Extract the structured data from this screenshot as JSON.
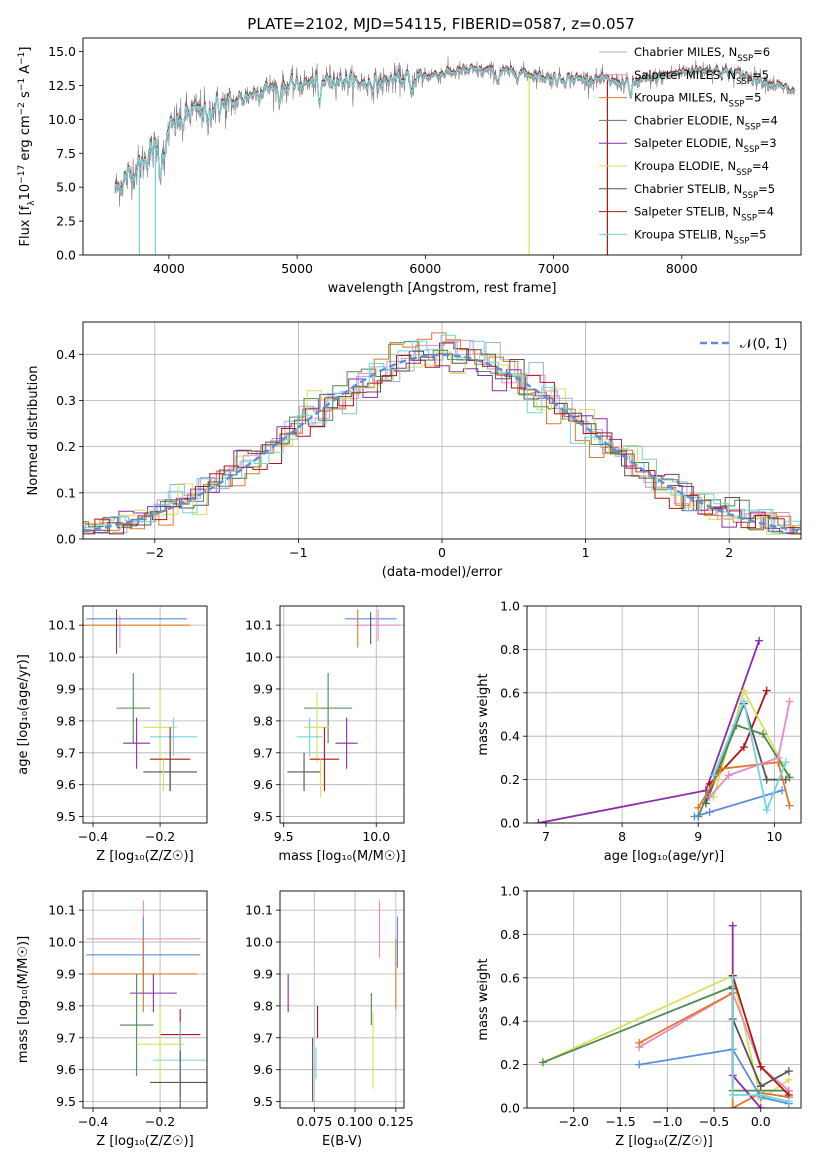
{
  "figure": {
    "title": "PLATE=2102, MJD=54115, FIBERID=0587, z=0.057"
  },
  "colors": {
    "chabrier_miles": "#9ab5d3",
    "salpeter_miles": "#e889c8",
    "kroupa_miles": "#e0792a",
    "chabrier_elodie": "#4f8a4f",
    "salpeter_elodie": "#8e2aa8",
    "kroupa_elodie": "#d6e05a",
    "chabrier_stelib": "#555555",
    "salpeter_stelib": "#b01515",
    "kroupa_stelib": "#6fd6e0",
    "data_gray": "#7a7a7a",
    "normal_curve": "#5b8fd9",
    "blue_model": "#5b8fd9",
    "grid": "#b0b0b0"
  },
  "chart_data": [
    {
      "panel": "spectrum",
      "type": "line",
      "title": "PLATE=2102, MJD=54115, FIBERID=0587, z=0.057",
      "xlabel": "wavelength [Angstrom, rest frame]",
      "ylabel_parts": [
        "Flux [f",
        "λ",
        "10",
        "−17",
        " erg cm",
        "−2",
        " s",
        "−1",
        " A",
        "−1",
        "]"
      ],
      "xlim": [
        3330,
        8930
      ],
      "ylim": [
        0,
        16
      ],
      "xticks": [
        4000,
        5000,
        6000,
        7000,
        8000
      ],
      "yticks": [
        0.0,
        2.5,
        5.0,
        7.5,
        10.0,
        12.5,
        15.0
      ],
      "continuum": {
        "x": [
          3580,
          3700,
          3800,
          3900,
          4000,
          4100,
          4200,
          4300,
          4400,
          4500,
          4600,
          4700,
          4800,
          4900,
          5000,
          5100,
          5200,
          5300,
          5400,
          5600,
          5800,
          6000,
          6200,
          6400,
          6600,
          6800,
          7000,
          7200,
          7400,
          7600,
          7800,
          8000,
          8200,
          8400,
          8600,
          8880
        ],
        "y": [
          4.8,
          6.0,
          6.9,
          8.0,
          9.2,
          10.2,
          10.6,
          10.8,
          11.0,
          11.2,
          11.7,
          12.1,
          12.4,
          12.4,
          12.6,
          12.7,
          12.9,
          13.0,
          12.8,
          12.6,
          13.0,
          13.2,
          13.5,
          13.6,
          13.5,
          13.4,
          13.0,
          13.0,
          12.9,
          12.6,
          13.1,
          13.5,
          13.7,
          13.4,
          13.0,
          12.0
        ]
      },
      "series": [
        {
          "name": "Chabrier MILES, N",
          "n_ssp": "6",
          "color_key": "chabrier_miles"
        },
        {
          "name": "Salpeter MILES, N",
          "n_ssp": "5",
          "color_key": "salpeter_miles"
        },
        {
          "name": "Kroupa MILES, N",
          "n_ssp": "5",
          "color_key": "kroupa_miles"
        },
        {
          "name": "Chabrier ELODIE, N",
          "n_ssp": "4",
          "color_key": "chabrier_elodie"
        },
        {
          "name": "Salpeter ELODIE, N",
          "n_ssp": "3",
          "color_key": "salpeter_elodie"
        },
        {
          "name": "Kroupa ELODIE, N",
          "n_ssp": "4",
          "color_key": "kroupa_elodie"
        },
        {
          "name": "Chabrier STELIB, N",
          "n_ssp": "5",
          "color_key": "chabrier_stelib"
        },
        {
          "name": "Salpeter STELIB, N",
          "n_ssp": "4",
          "color_key": "salpeter_stelib"
        },
        {
          "name": "Kroupa STELIB, N",
          "n_ssp": "5",
          "color_key": "kroupa_stelib"
        }
      ],
      "legend_subscript": "SSP",
      "legend_location": "right"
    },
    {
      "panel": "residuals",
      "type": "area",
      "xlabel": "(data-model)/error",
      "ylabel": "Normed distribution",
      "xlim": [
        -2.5,
        2.5
      ],
      "ylim": [
        0,
        0.47
      ],
      "xticks": [
        -2,
        -1,
        0,
        1,
        2
      ],
      "xtick_labels": [
        "−2",
        "−1",
        "0",
        "1",
        "2"
      ],
      "yticks": [
        0.0,
        0.1,
        0.2,
        0.3,
        0.4
      ],
      "yticks_labels": [
        "0.0",
        "0.1",
        "0.2",
        "0.3",
        "0.4"
      ],
      "grid": true,
      "bin_width": 0.1,
      "reference_curve": {
        "name": "𝒩(0, 1)",
        "mean": 0,
        "sigma": 1
      },
      "legend_location": "top-right"
    },
    {
      "panel": "age-vs-Z",
      "type": "scatter",
      "xlabel": "Z [log₁₀(Z/Z☉)]",
      "ylabel": "age  [log₁₀(age/yr)]",
      "xlim": [
        -0.43,
        -0.06
      ],
      "ylim": [
        9.48,
        10.16
      ],
      "xticks": [
        -0.4,
        -0.2
      ],
      "xtick_labels": [
        "−0.4",
        "−0.2"
      ],
      "yticks": [
        9.5,
        9.6,
        9.7,
        9.8,
        9.9,
        10.0,
        10.1
      ],
      "grid": true,
      "points": [
        {
          "color_key": "blue_model",
          "x": -0.27,
          "xerr": 0.15,
          "y": 10.12,
          "yerr": 0.0
        },
        {
          "color_key": "kroupa_miles",
          "x": -0.27,
          "xerr": 0.16,
          "y": 10.1,
          "yerr": 0.0
        },
        {
          "color_key": "salpeter_miles",
          "x": -0.32,
          "xerr": 0.0,
          "y": 10.08,
          "yerr": 0.05
        },
        {
          "color_key": "chabrier_stelib",
          "x": -0.33,
          "xerr": 0.0,
          "y": 10.08,
          "yerr": 0.07
        },
        {
          "color_key": "chabrier_elodie",
          "x": -0.28,
          "xerr": 0.05,
          "y": 9.84,
          "yerr": 0.11
        },
        {
          "color_key": "kroupa_elodie",
          "x": -0.2,
          "xerr": 0.05,
          "y": 9.78,
          "yerr": 0.11
        },
        {
          "color_key": "kroupa_stelib",
          "x": -0.16,
          "xerr": 0.07,
          "y": 9.75,
          "yerr": 0.06
        },
        {
          "color_key": "salpeter_elodie",
          "x": -0.27,
          "xerr": 0.04,
          "y": 9.73,
          "yerr": 0.08
        },
        {
          "color_key": "salpeter_stelib",
          "x": -0.17,
          "xerr": 0.06,
          "y": 9.68,
          "yerr": 0.1
        },
        {
          "color_key": "chabrier_stelib",
          "x": -0.17,
          "xerr": 0.08,
          "y": 9.64,
          "yerr": 0.06
        },
        {
          "color_key": "kroupa_elodie",
          "x": -0.19,
          "xerr": 0.0,
          "y": 9.63,
          "yerr": 0.05
        }
      ]
    },
    {
      "panel": "age-vs-mass",
      "type": "scatter",
      "xlabel": "mass [log₁₀(M/M☉)]",
      "xlim": [
        9.48,
        10.15
      ],
      "ylim": [
        9.48,
        10.16
      ],
      "xticks": [
        9.5,
        10.0
      ],
      "xtick_labels": [
        "9.5",
        "10.0"
      ],
      "yticks": [
        9.5,
        9.6,
        9.7,
        9.8,
        9.9,
        10.0,
        10.1
      ],
      "grid": true,
      "points": [
        {
          "color_key": "blue_model",
          "x": 9.97,
          "xerr": 0.14,
          "y": 10.12,
          "yerr": 0.0
        },
        {
          "color_key": "salpeter_miles",
          "x": 10.01,
          "xerr": 0.12,
          "y": 10.1,
          "yerr": 0.05
        },
        {
          "color_key": "kroupa_miles",
          "x": 9.9,
          "xerr": 0.0,
          "y": 10.09,
          "yerr": 0.06
        },
        {
          "color_key": "chabrier_stelib",
          "x": 9.97,
          "xerr": 0.0,
          "y": 10.09,
          "yerr": 0.05
        },
        {
          "color_key": "chabrier_elodie",
          "x": 9.74,
          "xerr": 0.13,
          "y": 9.84,
          "yerr": 0.11
        },
        {
          "color_key": "kroupa_elodie",
          "x": 9.68,
          "xerr": 0.07,
          "y": 9.78,
          "yerr": 0.11
        },
        {
          "color_key": "kroupa_stelib",
          "x": 9.64,
          "xerr": 0.07,
          "y": 9.75,
          "yerr": 0.06
        },
        {
          "color_key": "salpeter_elodie",
          "x": 9.84,
          "xerr": 0.06,
          "y": 9.73,
          "yerr": 0.08
        },
        {
          "color_key": "salpeter_stelib",
          "x": 9.72,
          "xerr": 0.08,
          "y": 9.68,
          "yerr": 0.1
        },
        {
          "color_key": "chabrier_stelib",
          "x": 9.61,
          "xerr": 0.09,
          "y": 9.64,
          "yerr": 0.06
        },
        {
          "color_key": "kroupa_elodie",
          "x": 9.7,
          "xerr": 0.0,
          "y": 9.62,
          "yerr": 0.06
        }
      ]
    },
    {
      "panel": "mass-weight-vs-age",
      "type": "line",
      "xlabel": "age  [log₁₀(age/yr)]",
      "ylabel": "mass weight",
      "xlim": [
        6.75,
        10.35
      ],
      "ylim": [
        0,
        1
      ],
      "xticks": [
        7,
        8,
        9,
        10
      ],
      "yticks": [
        0.0,
        0.2,
        0.4,
        0.6,
        0.8,
        1.0
      ],
      "grid": true,
      "series": [
        {
          "color_key": "salpeter_elodie",
          "x": [
            6.9,
            9.1,
            9.8
          ],
          "y": [
            0.0,
            0.15,
            0.84
          ]
        },
        {
          "color_key": "salpeter_stelib",
          "x": [
            9.15,
            9.6,
            9.9
          ],
          "y": [
            0.18,
            0.35,
            0.61
          ]
        },
        {
          "color_key": "kroupa_elodie",
          "x": [
            9.2,
            9.6,
            10.2
          ],
          "y": [
            0.12,
            0.61,
            0.21
          ]
        },
        {
          "color_key": "chabrier_stelib",
          "x": [
            9.1,
            9.6,
            9.9,
            10.15
          ],
          "y": [
            0.09,
            0.55,
            0.2,
            0.2
          ]
        },
        {
          "color_key": "chabrier_elodie",
          "x": [
            9.0,
            9.5,
            9.85,
            10.2
          ],
          "y": [
            0.03,
            0.45,
            0.41,
            0.21
          ]
        },
        {
          "color_key": "kroupa_miles",
          "x": [
            9.0,
            9.3,
            10.05,
            10.2
          ],
          "y": [
            0.07,
            0.25,
            0.28,
            0.08
          ]
        },
        {
          "color_key": "salpeter_miles",
          "x": [
            9.15,
            9.4,
            10.05,
            10.2
          ],
          "y": [
            0.12,
            0.22,
            0.3,
            0.56
          ]
        },
        {
          "color_key": "blue_model",
          "x": [
            8.95,
            9.15,
            10.1
          ],
          "y": [
            0.03,
            0.05,
            0.15
          ]
        },
        {
          "color_key": "kroupa_stelib",
          "x": [
            9.2,
            9.6,
            9.9,
            10.15
          ],
          "y": [
            0.22,
            0.56,
            0.06,
            0.28
          ]
        }
      ]
    },
    {
      "panel": "mass-vs-Z",
      "type": "scatter",
      "xlabel": "Z [log₁₀(Z/Z☉)]",
      "ylabel": "mass [log₁₀(M/M☉)]",
      "xlim": [
        -0.43,
        -0.06
      ],
      "ylim": [
        9.48,
        10.16
      ],
      "xticks": [
        -0.4,
        -0.2
      ],
      "xtick_labels": [
        "−0.4",
        "−0.2"
      ],
      "yticks": [
        9.5,
        9.6,
        9.7,
        9.8,
        9.9,
        10.0,
        10.1
      ],
      "grid": true,
      "points": [
        {
          "color_key": "salpeter_miles",
          "x": -0.25,
          "xerr": 0.17,
          "y": 10.01,
          "yerr": 0.12
        },
        {
          "color_key": "blue_model",
          "x": -0.25,
          "xerr": 0.17,
          "y": 9.96,
          "yerr": 0.12
        },
        {
          "color_key": "kroupa_miles",
          "x": -0.25,
          "xerr": 0.16,
          "y": 9.9,
          "yerr": 0.12
        },
        {
          "color_key": "salpeter_elodie",
          "x": -0.22,
          "xerr": 0.07,
          "y": 9.84,
          "yerr": 0.06
        },
        {
          "color_key": "chabrier_elodie",
          "x": -0.27,
          "xerr": 0.05,
          "y": 9.74,
          "yerr": 0.16
        },
        {
          "color_key": "salpeter_stelib",
          "x": -0.14,
          "xerr": 0.06,
          "y": 9.71,
          "yerr": 0.08
        },
        {
          "color_key": "kroupa_elodie",
          "x": -0.2,
          "xerr": 0.07,
          "y": 9.68,
          "yerr": 0.12
        },
        {
          "color_key": "kroupa_stelib",
          "x": -0.14,
          "xerr": 0.08,
          "y": 9.63,
          "yerr": 0.12
        },
        {
          "color_key": "chabrier_stelib",
          "x": -0.14,
          "xerr": 0.09,
          "y": 9.56,
          "yerr": 0.1
        }
      ]
    },
    {
      "panel": "mass-vs-EBV",
      "type": "scatter",
      "xlabel": "E(B-V)",
      "xlim": [
        0.054,
        0.13
      ],
      "ylim": [
        9.48,
        10.16
      ],
      "xticks": [
        0.075,
        0.1,
        0.125
      ],
      "xtick_labels": [
        "0.075",
        "0.100",
        "0.125"
      ],
      "yticks": [
        9.5,
        9.6,
        9.7,
        9.8,
        9.9,
        10.0,
        10.1
      ],
      "grid": true,
      "points": [
        {
          "color_key": "salpeter_miles",
          "x": 0.115,
          "xerr": 0,
          "y": 10.04,
          "yerr": 0.09
        },
        {
          "color_key": "blue_model",
          "x": 0.126,
          "xerr": 0,
          "y": 10.0,
          "yerr": 0.08
        },
        {
          "color_key": "kroupa_miles",
          "x": 0.125,
          "xerr": 0,
          "y": 9.9,
          "yerr": 0.11
        },
        {
          "color_key": "salpeter_elodie",
          "x": 0.059,
          "xerr": 0,
          "y": 9.84,
          "yerr": 0.06
        },
        {
          "color_key": "chabrier_elodie",
          "x": 0.11,
          "xerr": 0,
          "y": 9.79,
          "yerr": 0.05
        },
        {
          "color_key": "salpeter_stelib",
          "x": 0.077,
          "xerr": 0,
          "y": 9.75,
          "yerr": 0.05
        },
        {
          "color_key": "kroupa_elodie",
          "x": 0.111,
          "xerr": 0,
          "y": 9.66,
          "yerr": 0.12
        },
        {
          "color_key": "kroupa_stelib",
          "x": 0.076,
          "xerr": 0,
          "y": 9.62,
          "yerr": 0.05
        },
        {
          "color_key": "chabrier_stelib",
          "x": 0.074,
          "xerr": 0,
          "y": 9.6,
          "yerr": 0.1
        }
      ]
    },
    {
      "panel": "mass-weight-vs-Z",
      "type": "line",
      "xlabel": "Z [log₁₀(Z/Z☉)]",
      "ylabel": "mass weight",
      "xlim": [
        -2.5,
        0.43
      ],
      "ylim": [
        0,
        1
      ],
      "xticks": [
        -2.0,
        -1.5,
        -1.0,
        -0.5,
        0.0
      ],
      "xtick_labels": [
        "−2.0",
        "−1.5",
        "−1.0",
        "−0.5",
        "0.0"
      ],
      "yticks": [
        0.0,
        0.2,
        0.4,
        0.6,
        0.8,
        1.0
      ],
      "grid": true,
      "series": [
        {
          "color_key": "kroupa_elodie",
          "x": [
            -2.33,
            -0.3,
            0.0,
            0.3
          ],
          "y": [
            0.21,
            0.61,
            0.04,
            0.13
          ]
        },
        {
          "color_key": "chabrier_elodie",
          "x": [
            -2.33,
            -0.3,
            -0.3,
            0.0,
            0.3
          ],
          "y": [
            0.21,
            0.56,
            0.08,
            0.08,
            0.08
          ]
        },
        {
          "color_key": "salpeter_miles",
          "x": [
            -1.3,
            -0.3,
            0.0,
            0.3
          ],
          "y": [
            0.28,
            0.53,
            0.19,
            0.08
          ]
        },
        {
          "color_key": "kroupa_miles",
          "x": [
            -1.3,
            -0.3,
            -0.3,
            0.0,
            0.3
          ],
          "y": [
            0.3,
            0.53,
            0.0,
            0.07,
            0.05
          ]
        },
        {
          "color_key": "blue_model",
          "x": [
            -1.3,
            -0.3,
            0.0,
            0.3
          ],
          "y": [
            0.2,
            0.27,
            0.05,
            0.02
          ]
        },
        {
          "color_key": "salpeter_elodie",
          "x": [
            -0.3,
            -0.3,
            0.0
          ],
          "y": [
            0.84,
            0.15,
            0.0
          ]
        },
        {
          "color_key": "salpeter_stelib",
          "x": [
            -0.3,
            0.0,
            0.3
          ],
          "y": [
            0.61,
            0.19,
            0.06
          ]
        },
        {
          "color_key": "chabrier_stelib",
          "x": [
            -0.3,
            -0.3,
            0.0,
            0.3
          ],
          "y": [
            0.55,
            0.41,
            0.1,
            0.17
          ]
        },
        {
          "color_key": "kroupa_stelib",
          "x": [
            -0.3,
            -0.3,
            0.0,
            0.3
          ],
          "y": [
            0.6,
            0.06,
            0.06,
            0.03
          ]
        }
      ]
    }
  ]
}
